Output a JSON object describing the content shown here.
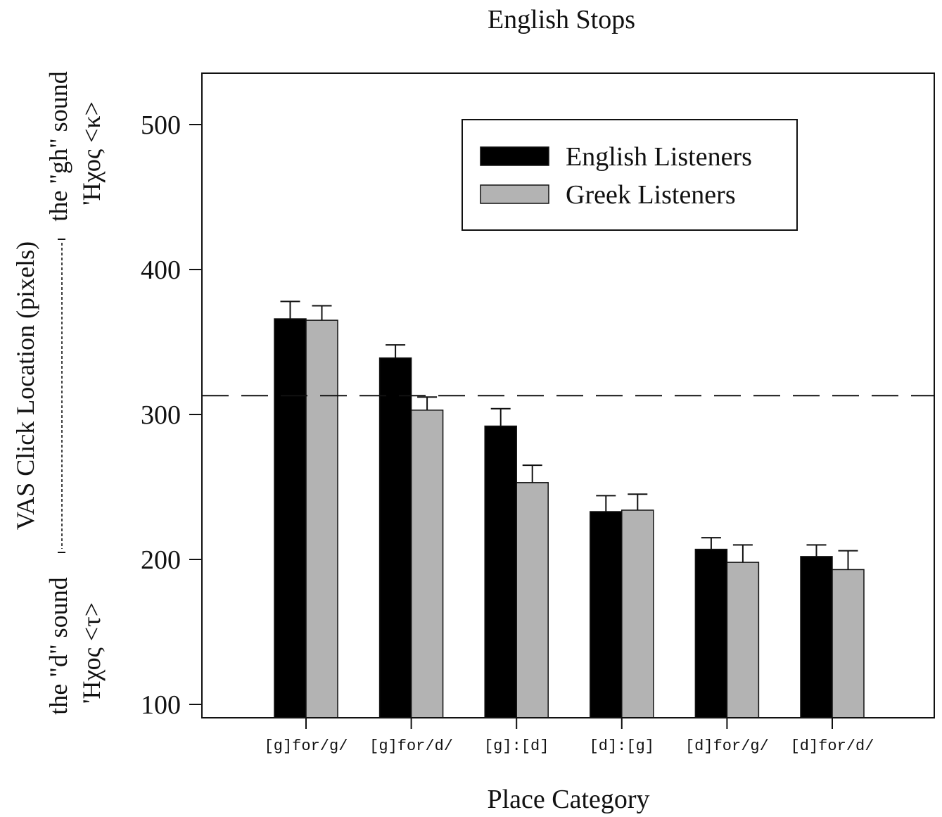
{
  "chart_data": {
    "type": "bar",
    "title": "English Stops",
    "xlabel": "Place Category",
    "ylabel": "VAS Click Location (pixels)",
    "y_anchor_top": {
      "english": "the \"gh\" sound",
      "greek": "'Ηχος <κ>"
    },
    "y_anchor_bottom": {
      "english": "the \"d\" sound",
      "greek": "'Ηχος <τ>"
    },
    "categories": [
      "[g]for/g/",
      "[g]for/d/",
      "[g]:[d]",
      "[d]:[g]",
      "[d]for/g/",
      "[d]for/d/"
    ],
    "series": [
      {
        "name": "English Listeners",
        "color": "#000000",
        "values": [
          366,
          339,
          292,
          233,
          207,
          202
        ],
        "errors": [
          12,
          9,
          12,
          11,
          8,
          8
        ]
      },
      {
        "name": "Greek Listeners",
        "color": "#b3b3b3",
        "values": [
          365,
          303,
          253,
          234,
          198,
          193
        ],
        "errors": [
          10,
          9,
          12,
          11,
          12,
          13
        ]
      }
    ],
    "reference_line": 313,
    "ylim": [
      90,
      535
    ],
    "yticks": [
      100,
      200,
      300,
      400,
      500
    ],
    "ytick_labels": [
      "100",
      "200",
      "300",
      "400",
      "500"
    ],
    "legend_position": "top-right",
    "grid": false
  }
}
